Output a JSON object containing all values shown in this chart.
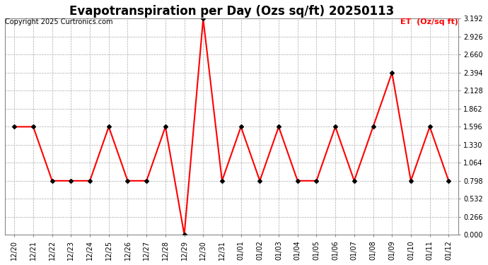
{
  "title": "Evapotranspiration per Day (Ozs sq/ft) 20250113",
  "copyright": "Copyright 2025 Curtronics.com",
  "legend_label": "ET  (Oz/sq ft)",
  "dates": [
    "12/20",
    "12/21",
    "12/22",
    "12/23",
    "12/24",
    "12/25",
    "12/26",
    "12/27",
    "12/28",
    "12/29",
    "12/30",
    "12/31",
    "01/01",
    "01/02",
    "01/03",
    "01/04",
    "01/05",
    "01/06",
    "01/07",
    "01/08",
    "01/09",
    "01/10",
    "01/11",
    "01/12"
  ],
  "values": [
    1.596,
    1.596,
    0.798,
    0.798,
    0.798,
    1.596,
    0.798,
    0.798,
    1.596,
    0.0,
    3.192,
    0.798,
    1.596,
    0.798,
    1.596,
    0.798,
    0.798,
    1.596,
    0.798,
    1.596,
    2.394,
    0.798,
    1.596,
    0.798
  ],
  "line_color": "red",
  "marker_color": "black",
  "marker": "D",
  "marker_size": 3,
  "line_width": 1.5,
  "ylim": [
    0.0,
    3.192
  ],
  "yticks": [
    0.0,
    0.266,
    0.532,
    0.798,
    1.064,
    1.33,
    1.596,
    1.862,
    2.128,
    2.394,
    2.66,
    2.926,
    3.192
  ],
  "grid_color": "#aaaaaa",
  "background_color": "#ffffff",
  "title_fontsize": 12,
  "label_fontsize": 8,
  "tick_fontsize": 7,
  "legend_color": "red",
  "copyright_fontsize": 7
}
